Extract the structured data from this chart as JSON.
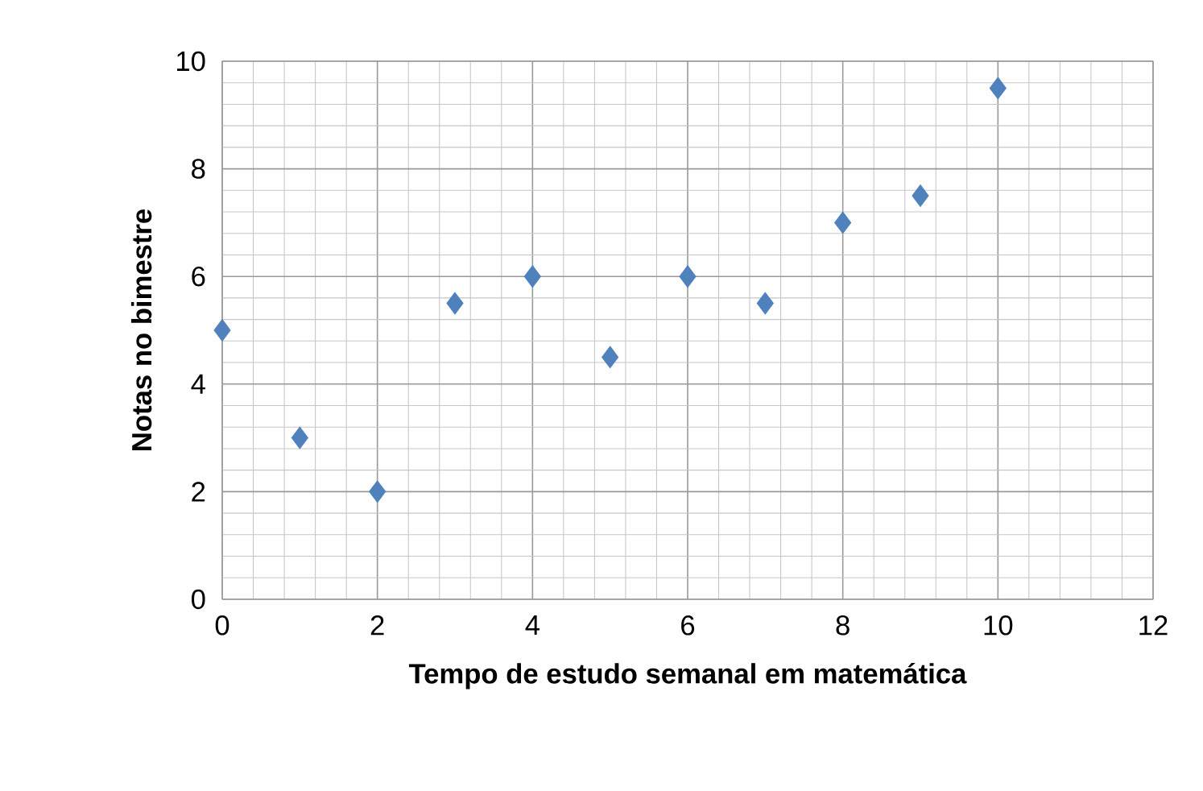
{
  "chart_data": {
    "type": "scatter",
    "xlabel": "Tempo de estudo semanal em matemática",
    "ylabel": "Notas no bimestre",
    "x": [
      0,
      1,
      2,
      3,
      4,
      5,
      6,
      7,
      8,
      9,
      10
    ],
    "values": [
      5,
      3,
      2,
      5.5,
      6,
      4.5,
      6,
      5.5,
      7,
      7.5,
      9.5
    ],
    "color": "#4f81bd",
    "marker": "diamond",
    "xlim": [
      0,
      12
    ],
    "xticks": [
      0,
      2,
      4,
      6,
      8,
      10,
      12
    ],
    "ylim": [
      0,
      10
    ],
    "yticks": [
      0,
      2,
      4,
      6,
      8,
      10
    ],
    "grid": true
  }
}
